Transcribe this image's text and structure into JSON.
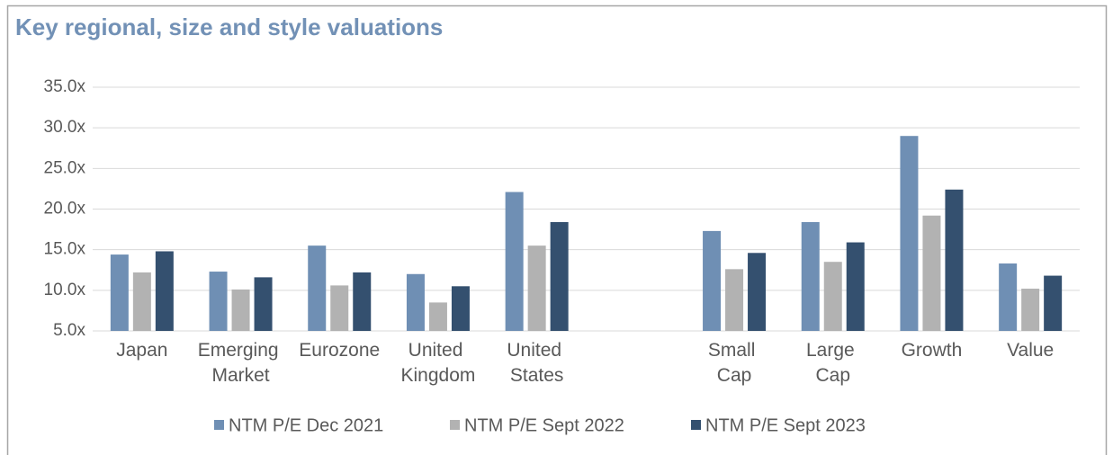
{
  "chart_data": {
    "type": "bar",
    "title": "Key regional, size and style valuations",
    "categories": [
      "Japan",
      "Emerging Market",
      "Eurozone",
      "United Kingdom",
      "United States",
      null,
      "Small Cap",
      "Large Cap",
      "Growth",
      "Value"
    ],
    "series": [
      {
        "name": "NTM P/E Dec 2021",
        "color": "#6f8fb4",
        "values": [
          14.4,
          12.3,
          15.5,
          12.0,
          22.1,
          null,
          17.3,
          18.4,
          29.0,
          13.3
        ]
      },
      {
        "name": "NTM P/E Sept 2022",
        "color": "#b2b2b2",
        "values": [
          12.2,
          10.1,
          10.6,
          8.5,
          15.5,
          null,
          12.6,
          13.5,
          19.2,
          10.2
        ]
      },
      {
        "name": "NTM P/E Sept 2023",
        "color": "#34506f",
        "values": [
          14.8,
          11.6,
          12.2,
          10.5,
          18.4,
          null,
          14.6,
          15.9,
          22.4,
          11.8
        ]
      }
    ],
    "ylim": [
      5,
      35
    ],
    "yticks": [
      {
        "value": 5,
        "label": "5.0x"
      },
      {
        "value": 10,
        "label": "10.0x"
      },
      {
        "value": 15,
        "label": "15.0x"
      },
      {
        "value": 20,
        "label": "20.0x"
      },
      {
        "value": 25,
        "label": "25.0x"
      },
      {
        "value": 30,
        "label": "30.0x"
      },
      {
        "value": 35,
        "label": "35.0x"
      }
    ],
    "grid": true,
    "legend": "bottom"
  }
}
